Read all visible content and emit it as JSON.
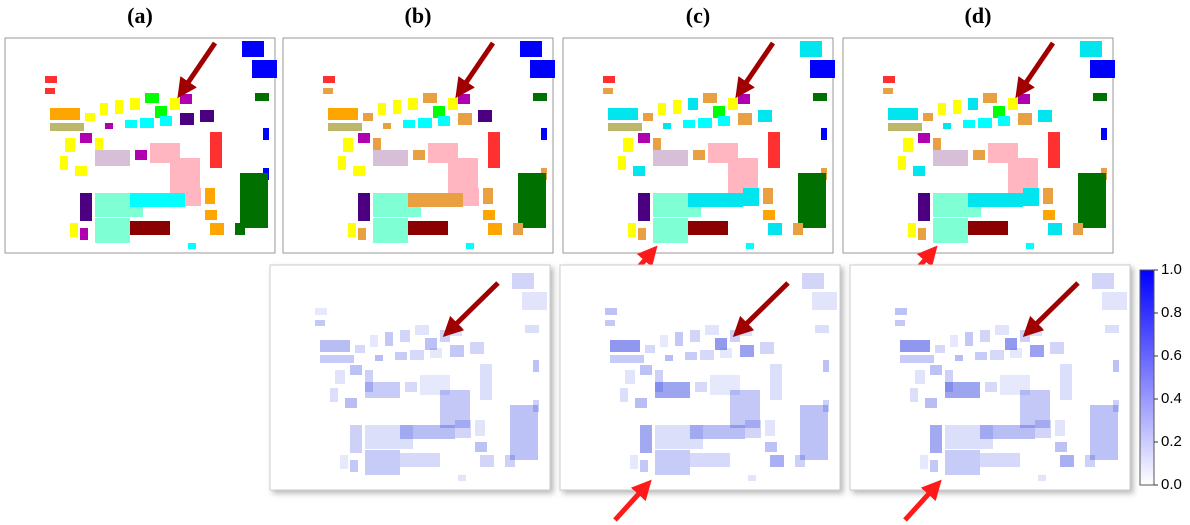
{
  "panel_labels": [
    "(a)",
    "(b)",
    "(c)",
    "(d)"
  ],
  "colorbar": {
    "lim": [
      0,
      1
    ],
    "ticks": [
      {
        "value": 1,
        "label": "1.0"
      },
      0.8,
      0.6,
      0.4,
      0.2,
      {
        "value": 0,
        "label": "0.0"
      }
    ]
  }
}
